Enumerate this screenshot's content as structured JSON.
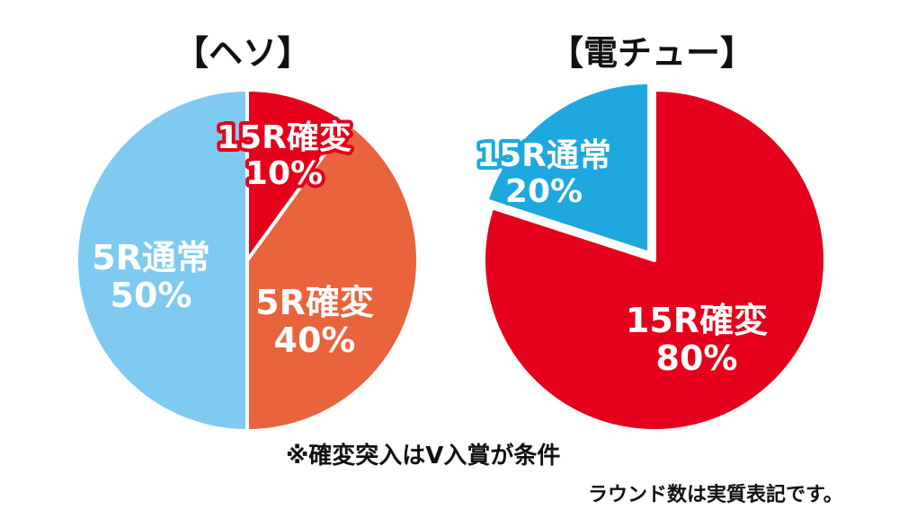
{
  "chart_data": [
    {
      "type": "pie",
      "title": "【ヘソ】",
      "slices": [
        {
          "label": "15R確変",
          "value": 10,
          "value_text": "10%",
          "color": "#e5001b"
        },
        {
          "label": "5R確変",
          "value": 40,
          "value_text": "40%",
          "color": "#e9643c"
        },
        {
          "label": "5R通常",
          "value": 50,
          "value_text": "50%",
          "color": "#7fcaf1"
        }
      ]
    },
    {
      "type": "pie",
      "title": "【電チュー】",
      "slices": [
        {
          "label": "15R確変",
          "value": 80,
          "value_text": "80%",
          "color": "#e5001b"
        },
        {
          "label": "15R通常",
          "value": 20,
          "value_text": "20%",
          "color": "#1ea8df"
        }
      ]
    }
  ],
  "notes": {
    "condition": "※確変突入はV入賞が条件",
    "rounds": "ラウンド数は実質表記です。"
  }
}
